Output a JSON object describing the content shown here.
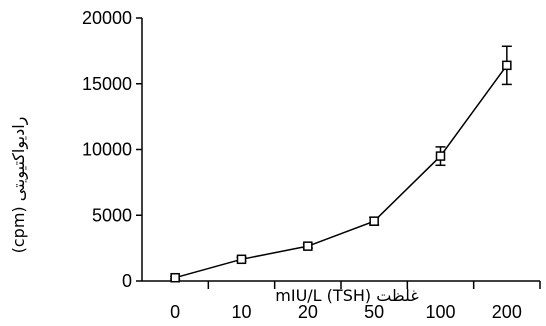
{
  "chart_data": {
    "type": "line",
    "title": "",
    "xlabel": "غلظت (TSH) mIU/L",
    "ylabel": "رادیواکتیویتی (cpm)",
    "categories": [
      "0",
      "10",
      "20",
      "50",
      "100",
      "200"
    ],
    "ylim": [
      0,
      20000
    ],
    "yticks": [
      0,
      5000,
      10000,
      15000,
      20000
    ],
    "grid": false,
    "series": [
      {
        "values": [
          250,
          1650,
          2650,
          4550,
          9500,
          16400
        ],
        "error": [
          100,
          150,
          150,
          300,
          700,
          1450
        ],
        "marker": "open-square",
        "color": "#000000"
      }
    ]
  }
}
